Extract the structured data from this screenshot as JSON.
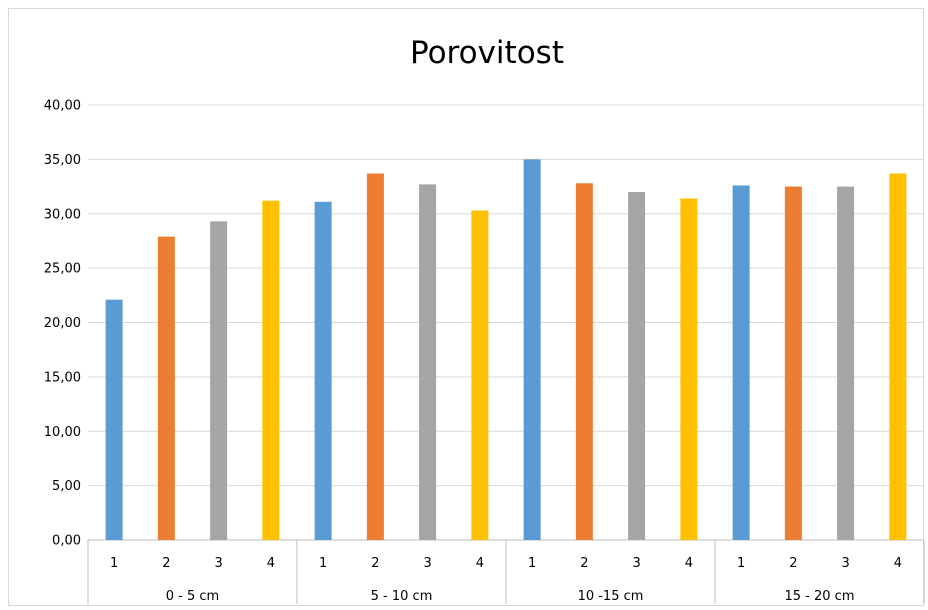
{
  "chart_data": {
    "type": "bar",
    "title": "Porovitost",
    "ylim": [
      0,
      40
    ],
    "yticks": [
      "0,00",
      "5,00",
      "10,00",
      "15,00",
      "20,00",
      "25,00",
      "30,00",
      "35,00",
      "40,00"
    ],
    "groups": [
      {
        "label": "0 - 5 cm",
        "bars": [
          {
            "category": "1",
            "value": 22.1
          },
          {
            "category": "2",
            "value": 27.9
          },
          {
            "category": "3",
            "value": 29.3
          },
          {
            "category": "4",
            "value": 31.2
          }
        ]
      },
      {
        "label": "5 - 10 cm",
        "bars": [
          {
            "category": "1",
            "value": 31.1
          },
          {
            "category": "2",
            "value": 33.7
          },
          {
            "category": "3",
            "value": 32.7
          },
          {
            "category": "4",
            "value": 30.3
          }
        ]
      },
      {
        "label": "10 -15 cm",
        "bars": [
          {
            "category": "1",
            "value": 35.0
          },
          {
            "category": "2",
            "value": 32.8
          },
          {
            "category": "3",
            "value": 32.0
          },
          {
            "category": "4",
            "value": 31.4
          }
        ]
      },
      {
        "label": "15 - 20 cm",
        "bars": [
          {
            "category": "1",
            "value": 32.6
          },
          {
            "category": "2",
            "value": 32.5
          },
          {
            "category": "3",
            "value": 32.5
          },
          {
            "category": "4",
            "value": 33.7
          }
        ]
      }
    ],
    "bar_colors": [
      "#5b9bd5",
      "#ed7d31",
      "#a5a5a5",
      "#ffc000"
    ],
    "gridlines": true,
    "grid_color": "#d9d9d9"
  }
}
